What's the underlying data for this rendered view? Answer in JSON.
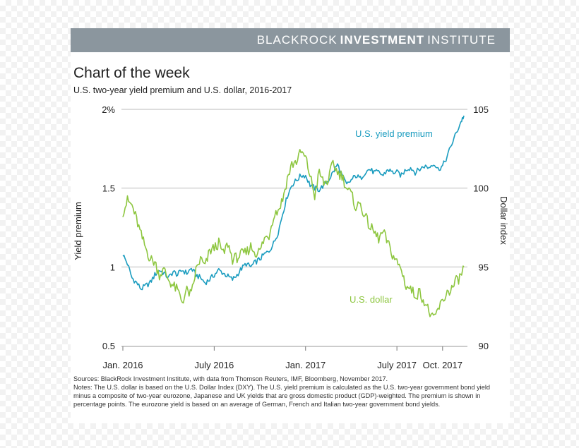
{
  "banner": {
    "left": "BLACKROCK",
    "bold": "INVESTMENT",
    "right": "INSTITUTE"
  },
  "title": "Chart of the week",
  "subtitle": "U.S. two-year yield premium and U.S. dollar, 2016-2017",
  "sources": "Sources: BlackRock Investment Institute, with data from Thomson Reuters, IMF, Bloomberg, November 2017.",
  "notes": "Notes: The U.S. dollar is based on the U.S. Dollar Index (DXY). The U.S. yield premium is calculated as the U.S. two-year government bond yield minus a composite of two-year eurozone, Japanese and UK yields that are gross domestic product (GDP)-weighted. The premium is shown in percentage points. The eurozone yield is based on an average of German, French and Italian two-year government bond yields.",
  "colors": {
    "yield": "#1a9cbf",
    "dollar": "#8dc63f",
    "grid": "#bbbbbb",
    "banner": "#8b969e"
  },
  "chart_data": {
    "type": "line",
    "title": "U.S. two-year yield premium and U.S. dollar, 2016-2017",
    "x_range": [
      "2016-01-01",
      "2017-11-01"
    ],
    "x_ticks": [
      {
        "label": "Jan. 2016",
        "t": 0
      },
      {
        "label": "July 2016",
        "t": 6
      },
      {
        "label": "Jan. 2017",
        "t": 12
      },
      {
        "label": "July 2017",
        "t": 18
      },
      {
        "label": "Oct. 2017",
        "t": 21
      }
    ],
    "y_left": {
      "label": "Yield premium",
      "min": 0.5,
      "max": 2,
      "ticks": [
        "2%",
        "1.5",
        "1",
        "0.5"
      ],
      "tick_values": [
        2,
        1.5,
        1,
        0.5
      ]
    },
    "y_right": {
      "label": "Dollar index",
      "min": 90,
      "max": 105,
      "ticks": [
        "105",
        "100",
        "95",
        "90"
      ],
      "tick_values": [
        105,
        100,
        95,
        90
      ]
    },
    "series": [
      {
        "name": "U.S. yield premium",
        "axis": "left",
        "color": "#1a9cbf",
        "points": [
          [
            0,
            1.08
          ],
          [
            0.3,
            1.02
          ],
          [
            0.6,
            0.93
          ],
          [
            0.9,
            0.9
          ],
          [
            1.2,
            0.86
          ],
          [
            1.5,
            0.88
          ],
          [
            1.8,
            0.9
          ],
          [
            2.1,
            0.95
          ],
          [
            2.4,
            0.98
          ],
          [
            2.7,
            0.96
          ],
          [
            3.0,
            0.93
          ],
          [
            3.3,
            0.97
          ],
          [
            3.6,
            0.95
          ],
          [
            3.9,
            0.98
          ],
          [
            4.2,
            0.96
          ],
          [
            4.5,
            0.99
          ],
          [
            4.8,
            0.95
          ],
          [
            5.1,
            0.93
          ],
          [
            5.4,
            0.9
          ],
          [
            5.7,
            0.92
          ],
          [
            6.0,
            0.95
          ],
          [
            6.3,
            0.98
          ],
          [
            6.6,
            0.96
          ],
          [
            6.9,
            0.94
          ],
          [
            7.2,
            0.92
          ],
          [
            7.5,
            0.95
          ],
          [
            7.8,
            0.99
          ],
          [
            8.1,
            1.02
          ],
          [
            8.4,
            1.0
          ],
          [
            8.7,
            1.03
          ],
          [
            9.0,
            1.05
          ],
          [
            9.3,
            1.08
          ],
          [
            9.6,
            1.1
          ],
          [
            9.9,
            1.15
          ],
          [
            10.2,
            1.22
          ],
          [
            10.5,
            1.34
          ],
          [
            10.8,
            1.45
          ],
          [
            11.1,
            1.52
          ],
          [
            11.4,
            1.55
          ],
          [
            11.7,
            1.58
          ],
          [
            12.0,
            1.58
          ],
          [
            12.3,
            1.52
          ],
          [
            12.6,
            1.5
          ],
          [
            12.9,
            1.49
          ],
          [
            13.2,
            1.52
          ],
          [
            13.5,
            1.55
          ],
          [
            13.8,
            1.6
          ],
          [
            14.1,
            1.65
          ],
          [
            14.4,
            1.58
          ],
          [
            14.7,
            1.52
          ],
          [
            15.0,
            1.55
          ],
          [
            15.3,
            1.58
          ],
          [
            15.6,
            1.56
          ],
          [
            15.9,
            1.6
          ],
          [
            16.2,
            1.62
          ],
          [
            16.5,
            1.6
          ],
          [
            16.8,
            1.6
          ],
          [
            17.1,
            1.58
          ],
          [
            17.4,
            1.62
          ],
          [
            17.7,
            1.6
          ],
          [
            18.0,
            1.6
          ],
          [
            18.3,
            1.58
          ],
          [
            18.6,
            1.62
          ],
          [
            18.9,
            1.63
          ],
          [
            19.2,
            1.6
          ],
          [
            19.5,
            1.62
          ],
          [
            19.8,
            1.64
          ],
          [
            20.1,
            1.63
          ],
          [
            20.4,
            1.66
          ],
          [
            20.7,
            1.62
          ],
          [
            21.0,
            1.64
          ],
          [
            21.3,
            1.7
          ],
          [
            21.6,
            1.78
          ],
          [
            21.9,
            1.85
          ],
          [
            22.2,
            1.92
          ],
          [
            22.4,
            1.96
          ]
        ]
      },
      {
        "name": "U.S. dollar",
        "axis": "right",
        "color": "#8dc63f",
        "points": [
          [
            0,
            98.5
          ],
          [
            0.3,
            99.2
          ],
          [
            0.6,
            98.9
          ],
          [
            0.9,
            98.0
          ],
          [
            1.2,
            97.0
          ],
          [
            1.5,
            96.2
          ],
          [
            1.8,
            95.5
          ],
          [
            2.1,
            95.3
          ],
          [
            2.4,
            94.5
          ],
          [
            2.7,
            94.8
          ],
          [
            3.0,
            94.2
          ],
          [
            3.3,
            93.8
          ],
          [
            3.6,
            93.5
          ],
          [
            3.9,
            92.8
          ],
          [
            4.2,
            93.5
          ],
          [
            4.5,
            93.2
          ],
          [
            4.8,
            94.8
          ],
          [
            5.1,
            95.5
          ],
          [
            5.4,
            95.0
          ],
          [
            5.7,
            96.0
          ],
          [
            6.0,
            96.2
          ],
          [
            6.3,
            96.5
          ],
          [
            6.6,
            95.8
          ],
          [
            6.9,
            96.5
          ],
          [
            7.2,
            95.5
          ],
          [
            7.5,
            95.6
          ],
          [
            7.8,
            95.8
          ],
          [
            8.1,
            95.9
          ],
          [
            8.4,
            96.3
          ],
          [
            8.7,
            95.9
          ],
          [
            9.0,
            96.0
          ],
          [
            9.3,
            96.8
          ],
          [
            9.6,
            97.0
          ],
          [
            9.9,
            98.3
          ],
          [
            10.2,
            98.6
          ],
          [
            10.5,
            99.3
          ],
          [
            10.8,
            100.6
          ],
          [
            11.1,
            101.5
          ],
          [
            11.4,
            101.7
          ],
          [
            11.7,
            102.3
          ],
          [
            12.0,
            101.9
          ],
          [
            12.3,
            100.8
          ],
          [
            12.6,
            99.5
          ],
          [
            12.9,
            101.0
          ],
          [
            13.2,
            100.3
          ],
          [
            13.5,
            100.5
          ],
          [
            13.8,
            101.6
          ],
          [
            14.1,
            101.0
          ],
          [
            14.4,
            100.8
          ],
          [
            14.7,
            100.0
          ],
          [
            15.0,
            99.6
          ],
          [
            15.3,
            98.8
          ],
          [
            15.6,
            99.0
          ],
          [
            15.9,
            98.2
          ],
          [
            16.2,
            97.6
          ],
          [
            16.5,
            97.2
          ],
          [
            16.8,
            96.8
          ],
          [
            17.1,
            97.2
          ],
          [
            17.4,
            96.5
          ],
          [
            17.7,
            95.8
          ],
          [
            18.0,
            95.3
          ],
          [
            18.3,
            94.8
          ],
          [
            18.6,
            93.8
          ],
          [
            18.9,
            93.6
          ],
          [
            19.2,
            93.2
          ],
          [
            19.5,
            93.4
          ],
          [
            19.8,
            92.8
          ],
          [
            20.1,
            92.2
          ],
          [
            20.4,
            91.6
          ],
          [
            20.7,
            92.3
          ],
          [
            21.0,
            92.8
          ],
          [
            21.3,
            93.4
          ],
          [
            21.6,
            93.6
          ],
          [
            21.9,
            94.1
          ],
          [
            22.2,
            94.4
          ],
          [
            22.4,
            95.0
          ]
        ]
      }
    ],
    "series_labels": {
      "yield": "U.S. yield premium",
      "dollar": "U.S. dollar"
    }
  }
}
